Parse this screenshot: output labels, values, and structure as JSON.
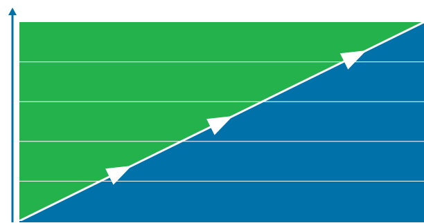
{
  "colors": {
    "upper_region": "#23B24B",
    "lower_region": "#0071A9",
    "axis": "#0071A9",
    "gridline": "#FFFFFF",
    "diagonal": "#FFFFFF",
    "arrowhead": "#FFFFFF",
    "background": "#FFFFFF"
  },
  "axes": {
    "y_axis_icon": "arrow-up-icon",
    "x_axis_icon": "arrow-right-icon"
  },
  "gridlines": {
    "count": 4
  },
  "diagonal": {
    "arrow_positions": [
      0.25,
      0.5,
      0.83
    ],
    "arrow_icon": "arrowhead-icon"
  }
}
